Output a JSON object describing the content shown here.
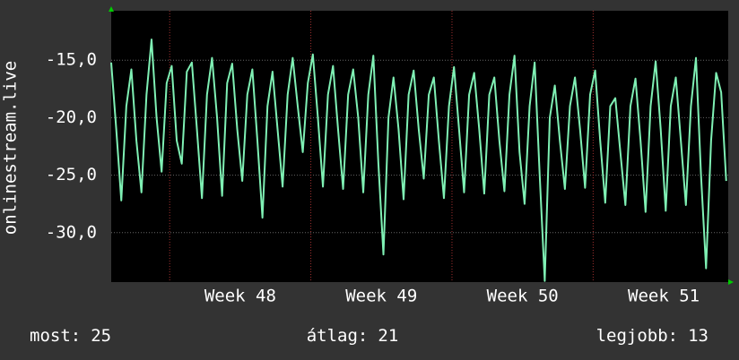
{
  "chart_data": {
    "type": "line",
    "ylabel": "onlinestream.live",
    "xlim": [
      0,
      30.6
    ],
    "ylim": [
      -34.3,
      -10.7
    ],
    "yticks": [
      {
        "value": -15,
        "label": "-15,0"
      },
      {
        "value": -20,
        "label": "-20,0"
      },
      {
        "value": -25,
        "label": "-25,0"
      },
      {
        "value": -30,
        "label": "-30,0"
      }
    ],
    "xticks": [
      {
        "value": 6.4,
        "label": "Week 48"
      },
      {
        "value": 13.4,
        "label": "Week 49"
      },
      {
        "value": 20.4,
        "label": "Week 50"
      },
      {
        "value": 27.4,
        "label": "Week 51"
      }
    ],
    "xgrid": [
      2.9,
      9.9,
      16.9,
      23.9
    ],
    "grid": true,
    "series": [
      {
        "color": "#7ff0b4",
        "x": [
          0,
          0.25,
          0.5,
          0.75,
          1,
          1.25,
          1.5,
          1.75,
          2,
          2.25,
          2.5,
          2.75,
          3,
          3.25,
          3.5,
          3.75,
          4,
          4.25,
          4.5,
          4.75,
          5,
          5.25,
          5.5,
          5.75,
          6,
          6.25,
          6.5,
          6.75,
          7,
          7.25,
          7.5,
          7.75,
          8,
          8.25,
          8.5,
          8.75,
          9,
          9.25,
          9.5,
          9.75,
          10,
          10.25,
          10.5,
          10.75,
          11,
          11.25,
          11.5,
          11.75,
          12,
          12.25,
          12.5,
          12.75,
          13,
          13.25,
          13.5,
          13.75,
          14,
          14.25,
          14.5,
          14.75,
          15,
          15.25,
          15.5,
          15.75,
          16,
          16.25,
          16.5,
          16.75,
          17,
          17.25,
          17.5,
          17.75,
          18,
          18.25,
          18.5,
          18.75,
          19,
          19.25,
          19.5,
          19.75,
          20,
          20.25,
          20.5,
          20.75,
          21,
          21.25,
          21.5,
          21.75,
          22,
          22.25,
          22.5,
          22.75,
          23,
          23.25,
          23.5,
          23.75,
          24,
          24.25,
          24.5,
          24.75,
          25,
          25.25,
          25.5,
          25.75,
          26,
          26.25,
          26.5,
          26.75,
          27,
          27.25,
          27.5,
          27.75,
          28,
          28.25,
          28.5,
          28.75,
          29,
          29.25,
          29.5,
          29.75,
          30,
          30.25,
          30.5
        ],
        "values": [
          -15.2,
          -21,
          -27.2,
          -19,
          -15.8,
          -22,
          -26.5,
          -18,
          -13.2,
          -20,
          -24.7,
          -17,
          -15.5,
          -22,
          -24,
          -16,
          -15.2,
          -21,
          -27,
          -18,
          -14.8,
          -20,
          -26.8,
          -17,
          -15.3,
          -21,
          -25.5,
          -18,
          -15.8,
          -22,
          -28.7,
          -19,
          -16,
          -21,
          -26,
          -18,
          -14.8,
          -19,
          -23,
          -17,
          -14.5,
          -20,
          -26,
          -18,
          -15.5,
          -21,
          -26.2,
          -18,
          -15.8,
          -20,
          -26.5,
          -18,
          -14.6,
          -24,
          -31.9,
          -20,
          -16.5,
          -21,
          -27.1,
          -18,
          -15.9,
          -21,
          -25.3,
          -18,
          -16.5,
          -22,
          -27,
          -19,
          -15.6,
          -21,
          -26.5,
          -18,
          -16.1,
          -21,
          -26.6,
          -18,
          -16.5,
          -22,
          -26.4,
          -18,
          -14.6,
          -23,
          -27.5,
          -19,
          -15.2,
          -25,
          -34.2,
          -20,
          -17.2,
          -22,
          -26.2,
          -19,
          -16.5,
          -21,
          -26.1,
          -18,
          -15.9,
          -22,
          -27.4,
          -19,
          -18.3,
          -23,
          -27.6,
          -19,
          -16.6,
          -22,
          -28.2,
          -19,
          -15.1,
          -21,
          -28.1,
          -19,
          -16.5,
          -22,
          -27.6,
          -19,
          -14.8,
          -25,
          -33.1,
          -22,
          -16.1,
          -17.8,
          -25.5
        ]
      }
    ],
    "stats": [
      {
        "label": "most:",
        "value": 25
      },
      {
        "label": "átlag:",
        "value": 21
      },
      {
        "label": "legjobb:",
        "value": 13
      }
    ]
  }
}
